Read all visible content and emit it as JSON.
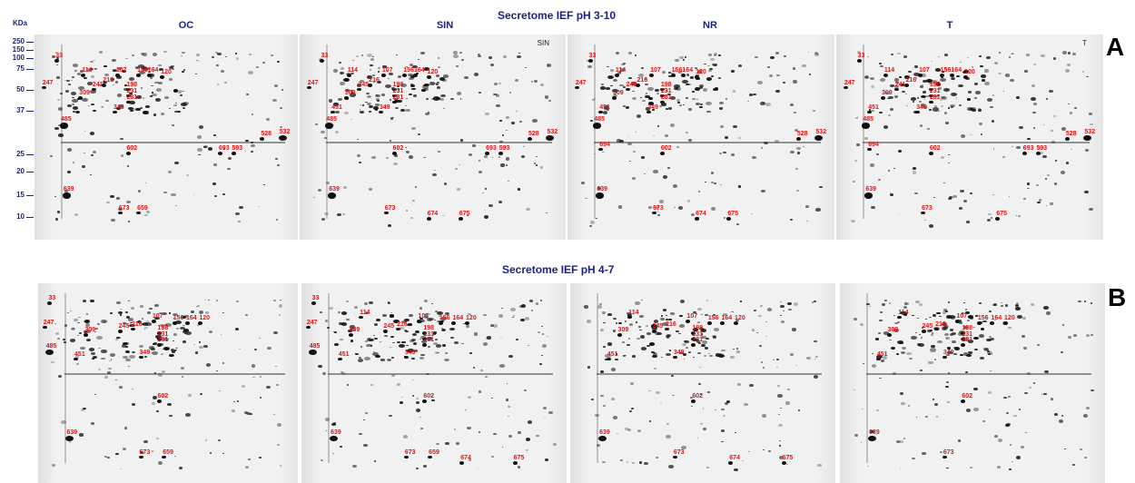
{
  "panel_a": {
    "title": "Secretome IEF pH 3-10",
    "letter": "A",
    "kda_label": "KDa",
    "mw_markers": [
      "250",
      "150",
      "100",
      "75",
      "50",
      "37",
      "25",
      "20",
      "15",
      "10"
    ],
    "gels": [
      {
        "header": "OC",
        "corner": "",
        "labels": [
          "33",
          "114",
          "107",
          "156",
          "164",
          "120",
          "247",
          "241",
          "216",
          "309",
          "198",
          "231",
          "281",
          "349",
          "485",
          "528",
          "532",
          "602",
          "693",
          "593",
          "639",
          "673",
          "659"
        ]
      },
      {
        "header": "SIN",
        "corner": "SIN",
        "labels": [
          "33",
          "114",
          "107",
          "156",
          "164",
          "120",
          "247",
          "245",
          "216",
          "309",
          "198",
          "231",
          "281",
          "349",
          "485",
          "451",
          "528",
          "532",
          "693",
          "593",
          "602",
          "639",
          "673",
          "674",
          "675"
        ]
      },
      {
        "header": "NR",
        "corner": "",
        "labels": [
          "33",
          "114",
          "107",
          "156",
          "164",
          "120",
          "247",
          "245",
          "216",
          "309",
          "198",
          "231",
          "281",
          "349",
          "451",
          "485",
          "528",
          "532",
          "694",
          "602",
          "639",
          "673",
          "674",
          "675"
        ]
      },
      {
        "header": "T",
        "corner": "T",
        "labels": [
          "33",
          "114",
          "107",
          "156",
          "164",
          "120",
          "247",
          "241",
          "216",
          "309",
          "198",
          "231",
          "281",
          "349",
          "451",
          "485",
          "528",
          "532",
          "694",
          "602",
          "693",
          "593",
          "639",
          "673",
          "675"
        ]
      }
    ]
  },
  "panel_b": {
    "title": "Secretome IEF pH 4-7",
    "letter": "B",
    "gels": [
      {
        "labels": [
          "33",
          "247",
          "485",
          "451",
          "309",
          "107",
          "156",
          "164",
          "120",
          "245",
          "216",
          "198",
          "231",
          "281",
          "349",
          "602",
          "639",
          "673",
          "659"
        ]
      },
      {
        "labels": [
          "33",
          "247",
          "485",
          "451",
          "114",
          "309",
          "107",
          "156",
          "164",
          "120",
          "245",
          "216",
          "198",
          "231",
          "281",
          "349",
          "602",
          "639",
          "673",
          "659",
          "674",
          "675"
        ]
      },
      {
        "labels": [
          "114",
          "309",
          "451",
          "107",
          "156",
          "164",
          "120",
          "245",
          "216",
          "198",
          "231",
          "281",
          "349",
          "602",
          "639",
          "673",
          "674",
          "675"
        ]
      },
      {
        "labels": [
          "114",
          "309",
          "245",
          "216",
          "107",
          "156",
          "164",
          "120",
          "198",
          "231",
          "281",
          "349",
          "451",
          "602",
          "639",
          "673"
        ]
      }
    ]
  }
}
